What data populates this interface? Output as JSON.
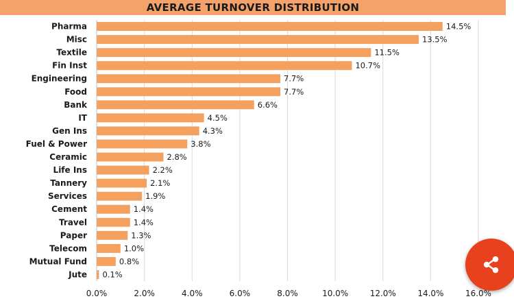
{
  "chart_data": {
    "type": "bar",
    "orientation": "horizontal",
    "title": "AVERAGE TURNOVER DISTRIBUTION",
    "categories": [
      "Pharma",
      "Misc",
      "Textile",
      "Fin Inst",
      "Engineering",
      "Food",
      "Bank",
      "IT",
      "Gen Ins",
      "Fuel & Power",
      "Ceramic",
      "Life Ins",
      "Tannery",
      "Services",
      "Cement",
      "Travel",
      "Paper",
      "Telecom",
      "Mutual Fund",
      "Jute"
    ],
    "values": [
      14.5,
      13.5,
      11.5,
      10.7,
      7.7,
      7.7,
      6.6,
      4.5,
      4.3,
      3.8,
      2.8,
      2.2,
      2.1,
      1.9,
      1.4,
      1.4,
      1.3,
      1.0,
      0.8,
      0.1
    ],
    "data_labels": [
      "14.5%",
      "13.5%",
      "11.5%",
      "10.7%",
      "7.7%",
      "7.7%",
      "6.6%",
      "4.5%",
      "4.3%",
      "3.8%",
      "2.8%",
      "2.2%",
      "2.1%",
      "1.9%",
      "1.4%",
      "1.4%",
      "1.3%",
      "1.0%",
      "0.8%",
      "0.1%"
    ],
    "xticks": [
      0,
      2,
      4,
      6,
      8,
      10,
      12,
      14,
      16
    ],
    "xtick_labels": [
      "0.0%",
      "2.0%",
      "4.0%",
      "6.0%",
      "8.0%",
      "10.0%",
      "12.0%",
      "14.0%",
      "16.0%"
    ],
    "xlim": [
      0,
      16
    ],
    "grid": "vertical",
    "legend": "none",
    "bar_color": "#f4a160",
    "grid_color": "#d9d9d9"
  },
  "share_button": {
    "icon": "share-icon",
    "color": "#e8411e"
  }
}
